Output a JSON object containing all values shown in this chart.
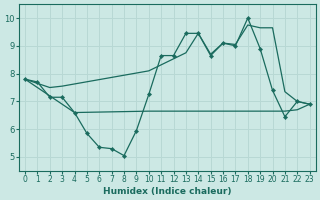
{
  "background_color": "#cce8e4",
  "grid_color": "#b8d8d4",
  "line_color": "#1a6b5e",
  "xlabel": "Humidex (Indice chaleur)",
  "xlim": [
    -0.5,
    23.5
  ],
  "ylim": [
    4.5,
    10.5
  ],
  "yticks": [
    5,
    6,
    7,
    8,
    9,
    10
  ],
  "xticks": [
    0,
    1,
    2,
    3,
    4,
    5,
    6,
    7,
    8,
    9,
    10,
    11,
    12,
    13,
    14,
    15,
    16,
    17,
    18,
    19,
    20,
    21,
    22,
    23
  ],
  "line_zigzag_x": [
    0,
    1,
    2,
    3,
    4,
    5,
    6,
    7,
    8,
    9,
    10,
    11,
    12,
    13,
    14,
    15,
    16,
    17,
    18,
    19,
    20,
    21,
    22,
    23
  ],
  "line_zigzag_y": [
    7.8,
    7.7,
    7.15,
    7.15,
    6.6,
    5.85,
    5.35,
    5.3,
    5.05,
    5.95,
    7.25,
    8.65,
    8.65,
    9.45,
    9.45,
    8.65,
    9.1,
    9.0,
    10.0,
    8.9,
    7.4,
    6.45,
    7.0,
    6.9
  ],
  "line_trend_x": [
    0,
    2,
    3,
    10,
    13,
    14,
    15,
    16,
    17,
    18,
    19,
    20,
    21,
    22,
    23
  ],
  "line_trend_y": [
    7.8,
    7.5,
    7.55,
    8.1,
    8.75,
    9.45,
    8.7,
    9.1,
    9.05,
    9.75,
    9.65,
    9.65,
    7.35,
    7.0,
    6.9
  ],
  "line_flat_x": [
    0,
    4,
    10,
    19,
    21,
    22,
    23
  ],
  "line_flat_y": [
    7.8,
    6.6,
    6.65,
    6.65,
    6.65,
    6.7,
    6.9
  ]
}
